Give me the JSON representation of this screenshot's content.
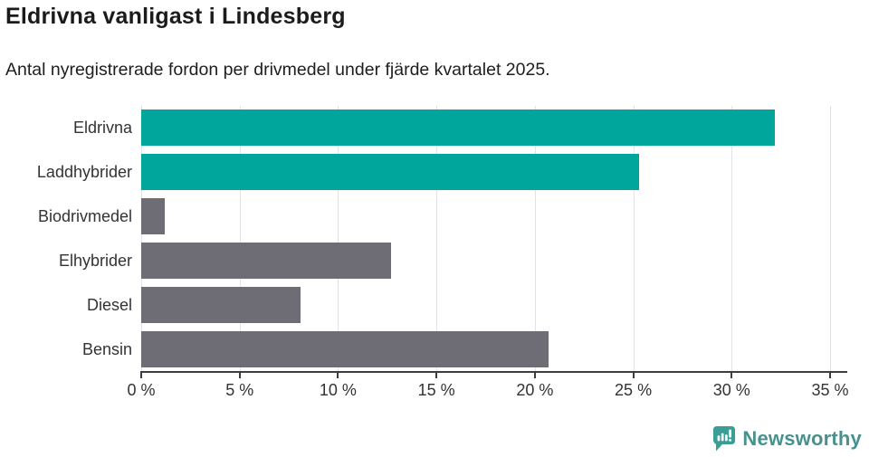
{
  "header": {
    "title": "Eldrivna vanligast i Lindesberg",
    "subtitle": "Antal nyregistrerade fordon per drivmedel under fjärde kvartalet 2025."
  },
  "chart_data": {
    "type": "bar",
    "orientation": "horizontal",
    "title": "Eldrivna vanligast i Lindesberg",
    "subtitle": "Antal nyregistrerade fordon per drivmedel under fjärde kvartalet 2025.",
    "categories": [
      "Eldrivna",
      "Laddhybrider",
      "Biodrivmedel",
      "Elhybrider",
      "Diesel",
      "Bensin"
    ],
    "values": [
      32.2,
      25.3,
      1.2,
      12.7,
      8.1,
      20.7
    ],
    "unit": "%",
    "xlim": [
      0,
      35
    ],
    "x_tick_values": [
      0,
      5,
      10,
      15,
      20,
      25,
      30,
      35
    ],
    "x_tick_labels": [
      "0 %",
      "5 %",
      "10 %",
      "15 %",
      "20 %",
      "25 %",
      "30 %",
      "35 %"
    ],
    "grid": true,
    "highlight_color": "#00a69c",
    "default_color": "#6e6d76",
    "bar_colors": [
      "#00a69c",
      "#00a69c",
      "#6e6d76",
      "#6e6d76",
      "#6e6d76",
      "#6e6d76"
    ],
    "gridline_color": "#e3e3e5",
    "axis_color": "#3d3d3d"
  },
  "footer": {
    "brand": "Newsworthy",
    "logo_icon": "newsworthy-speech-bubble-bar-chart-icon",
    "logo_color": "#3a9e96",
    "brand_text_color": "#48918e"
  }
}
